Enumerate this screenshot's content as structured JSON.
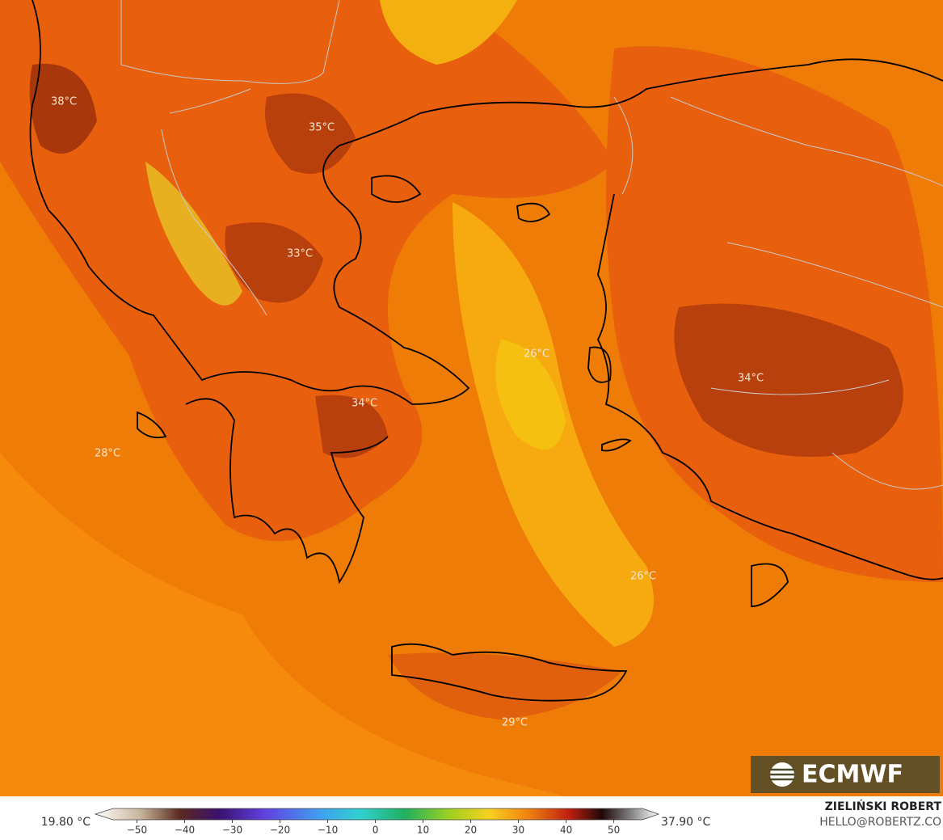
{
  "map": {
    "labels": [
      "38°C",
      "35°C",
      "33°C",
      "26°C",
      "34°C",
      "34°C",
      "28°C",
      "26°C",
      "29°C"
    ]
  },
  "legend": {
    "min_label": "19.80 °C",
    "max_label": "37.90 °C",
    "range": [
      -55,
      56
    ],
    "ticks": [
      {
        "value": -50,
        "label": "−50"
      },
      {
        "value": -40,
        "label": "−40"
      },
      {
        "value": -30,
        "label": "−30"
      },
      {
        "value": -20,
        "label": "−20"
      },
      {
        "value": -10,
        "label": "−10"
      },
      0,
      10,
      20,
      30,
      40,
      50
    ]
  },
  "logo": "ECMWF",
  "credit": {
    "author": "ZIELIŃSKI ROBERT",
    "email": "HELLO@ROBERTZ.CO"
  }
}
